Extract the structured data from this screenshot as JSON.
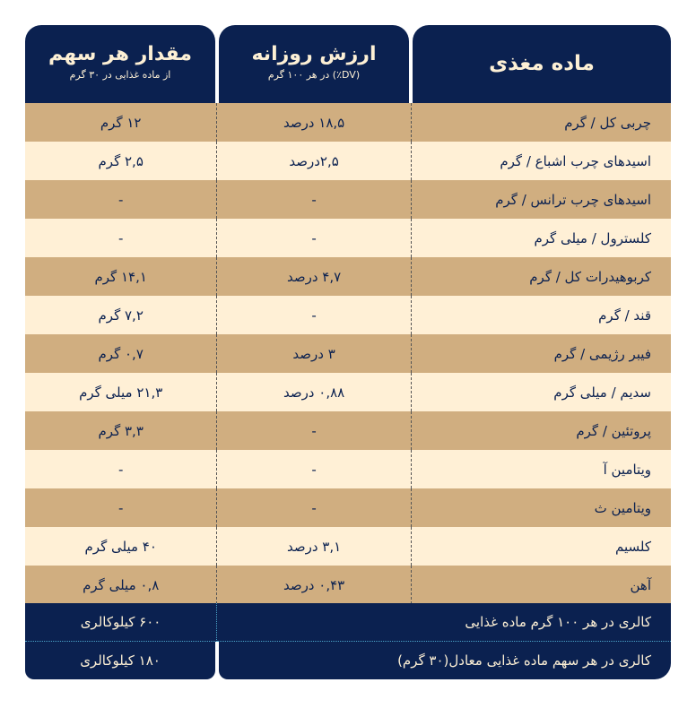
{
  "header": {
    "serving": {
      "title": "مقدار هر سهم",
      "subtitle": "از ماده غذایی در ۳۰ گرم"
    },
    "dv": {
      "title": "ارزش روزانه",
      "subtitle": "(DV٪) در هر ۱۰۰ گرم"
    },
    "nutrient": {
      "title": "ماده مغذی"
    }
  },
  "rows": [
    {
      "nutrient": "چربی کل / گرم",
      "dv": "۱۸,۵ درصد",
      "serving": "۱۲ گرم"
    },
    {
      "nutrient": "اسیدهای چرب اشباع / گرم",
      "dv": "۲,۵درصد",
      "serving": "۲,۵ گرم"
    },
    {
      "nutrient": "اسیدهای چرب ترانس / گرم",
      "dv": "-",
      "serving": "-"
    },
    {
      "nutrient": "کلسترول / میلی گرم",
      "dv": "-",
      "serving": "-"
    },
    {
      "nutrient": "کربوهیدرات کل / گرم",
      "dv": "۴,۷ درصد",
      "serving": "۱۴,۱ گرم"
    },
    {
      "nutrient": "قند / گرم",
      "dv": "-",
      "serving": "۷,۲ گرم"
    },
    {
      "nutrient": "فیبر رژیمی / گرم",
      "dv": "۳ درصد",
      "serving": "۰,۷ گرم"
    },
    {
      "nutrient": "سدیم / میلی گرم",
      "dv": "۰,۸۸ درصد",
      "serving": "۲۱,۳ میلی گرم"
    },
    {
      "nutrient": "پروتئین / گرم",
      "dv": "-",
      "serving": "۳,۳ گرم"
    },
    {
      "nutrient": "ویتامین آ",
      "dv": "-",
      "serving": "-"
    },
    {
      "nutrient": "ویتامین ث",
      "dv": "-",
      "serving": "-"
    },
    {
      "nutrient": "کلسیم",
      "dv": "۳,۱ درصد",
      "serving": "۴۰ میلی گرم"
    },
    {
      "nutrient": "آهن",
      "dv": "۰,۴۳ درصد",
      "serving": "۰,۸ میلی گرم"
    }
  ],
  "footer": {
    "cal100_label": "کالری در هر ۱۰۰ گرم ماده غذایی",
    "cal100_value": "۶۰۰ کیلوکالری",
    "calServing_label": "کالری در هر سهم ماده غذایی معادل(۳۰ گرم)",
    "calServing_value": "۱۸۰ کیلوکالری"
  },
  "colors": {
    "navy": "#0b2150",
    "tan": "#d0ae80",
    "cream": "#fff0d6"
  }
}
